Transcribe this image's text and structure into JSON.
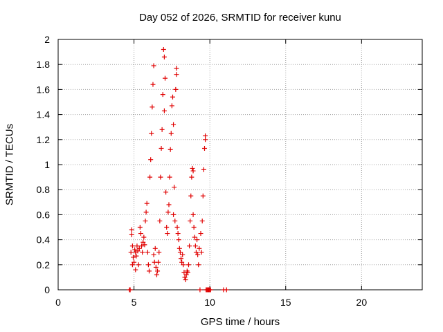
{
  "chart_data": {
    "type": "scatter",
    "title": "Day 052 of 2026, SRMTID for receiver kunu",
    "xlabel": "GPS time / hours",
    "ylabel": "SRMTID / TECUs",
    "xlim": [
      0,
      24
    ],
    "ylim": [
      0,
      2
    ],
    "xticks": [
      0,
      5,
      10,
      15,
      20
    ],
    "yticks": [
      0,
      0.2,
      0.4,
      0.6,
      0.8,
      1,
      1.2,
      1.4,
      1.6,
      1.8,
      2
    ],
    "grid": true,
    "marker": "+",
    "series": [
      {
        "color": "#e00000",
        "points": [
          [
            4.7,
            0.0
          ],
          [
            4.75,
            0.0
          ],
          [
            4.8,
            0.3
          ],
          [
            4.85,
            0.44
          ],
          [
            4.85,
            0.48
          ],
          [
            4.9,
            0.2
          ],
          [
            4.9,
            0.35
          ],
          [
            4.95,
            0.26
          ],
          [
            5.0,
            0.22
          ],
          [
            5.05,
            0.32
          ],
          [
            5.1,
            0.3
          ],
          [
            5.1,
            0.16
          ],
          [
            5.15,
            0.27
          ],
          [
            5.2,
            0.35
          ],
          [
            5.25,
            0.31
          ],
          [
            5.3,
            0.2
          ],
          [
            5.35,
            0.33
          ],
          [
            5.4,
            0.5
          ],
          [
            5.45,
            0.45
          ],
          [
            5.5,
            0.35
          ],
          [
            5.55,
            0.3
          ],
          [
            5.6,
            0.38
          ],
          [
            5.65,
            0.42
          ],
          [
            5.7,
            0.36
          ],
          [
            5.75,
            0.55
          ],
          [
            5.8,
            0.62
          ],
          [
            5.85,
            0.69
          ],
          [
            5.9,
            0.3
          ],
          [
            5.95,
            0.2
          ],
          [
            6.0,
            0.15
          ],
          [
            6.05,
            0.9
          ],
          [
            6.1,
            1.04
          ],
          [
            6.15,
            1.25
          ],
          [
            6.2,
            1.46
          ],
          [
            6.25,
            1.64
          ],
          [
            6.3,
            1.79
          ],
          [
            6.3,
            0.28
          ],
          [
            6.35,
            0.22
          ],
          [
            6.4,
            0.33
          ],
          [
            6.45,
            0.18
          ],
          [
            6.5,
            0.12
          ],
          [
            6.55,
            0.15
          ],
          [
            6.6,
            0.22
          ],
          [
            6.65,
            0.3
          ],
          [
            6.7,
            0.55
          ],
          [
            6.75,
            0.9
          ],
          [
            6.8,
            1.13
          ],
          [
            6.85,
            1.28
          ],
          [
            6.9,
            1.56
          ],
          [
            6.95,
            1.92
          ],
          [
            7.0,
            1.86
          ],
          [
            7.0,
            1.43
          ],
          [
            7.05,
            1.69
          ],
          [
            7.1,
            0.78
          ],
          [
            7.15,
            0.5
          ],
          [
            7.2,
            0.45
          ],
          [
            7.25,
            0.62
          ],
          [
            7.3,
            0.68
          ],
          [
            7.35,
            0.9
          ],
          [
            7.4,
            1.12
          ],
          [
            7.45,
            1.25
          ],
          [
            7.5,
            1.47
          ],
          [
            7.55,
            1.54
          ],
          [
            7.6,
            1.32
          ],
          [
            7.6,
            0.6
          ],
          [
            7.65,
            0.82
          ],
          [
            7.7,
            0.55
          ],
          [
            7.75,
            1.6
          ],
          [
            7.8,
            1.72
          ],
          [
            7.8,
            1.77
          ],
          [
            7.85,
            0.5
          ],
          [
            7.9,
            0.45
          ],
          [
            7.95,
            0.4
          ],
          [
            8.0,
            0.33
          ],
          [
            8.05,
            0.3
          ],
          [
            8.1,
            0.25
          ],
          [
            8.15,
            0.22
          ],
          [
            8.2,
            0.28
          ],
          [
            8.25,
            0.2
          ],
          [
            8.3,
            0.14
          ],
          [
            8.35,
            0.1
          ],
          [
            8.4,
            0.08
          ],
          [
            8.45,
            0.12
          ],
          [
            8.5,
            0.15
          ],
          [
            8.55,
            0.14
          ],
          [
            8.6,
            0.2
          ],
          [
            8.65,
            0.35
          ],
          [
            8.7,
            0.55
          ],
          [
            8.75,
            0.75
          ],
          [
            8.8,
            0.9
          ],
          [
            8.85,
            0.97
          ],
          [
            8.9,
            0.95
          ],
          [
            8.9,
            0.6
          ],
          [
            8.95,
            0.5
          ],
          [
            9.0,
            0.42
          ],
          [
            9.05,
            0.35
          ],
          [
            9.1,
            0.3
          ],
          [
            9.15,
            0.4
          ],
          [
            9.2,
            0.28
          ],
          [
            9.25,
            0.2
          ],
          [
            9.3,
            0.33
          ],
          [
            9.35,
            0.0
          ],
          [
            9.4,
            0.45
          ],
          [
            9.45,
            0.3
          ],
          [
            9.5,
            0.55
          ],
          [
            9.55,
            0.75
          ],
          [
            9.6,
            0.96
          ],
          [
            9.65,
            1.13
          ],
          [
            9.7,
            1.2
          ],
          [
            9.7,
            1.23
          ],
          [
            9.75,
            0.0
          ],
          [
            9.8,
            0.0
          ],
          [
            9.85,
            0.0
          ],
          [
            9.9,
            0.0
          ],
          [
            9.95,
            0.0
          ],
          [
            10.0,
            0.0
          ],
          [
            10.05,
            0.0
          ],
          [
            10.9,
            0.0
          ],
          [
            11.1,
            0.0
          ]
        ]
      }
    ]
  }
}
